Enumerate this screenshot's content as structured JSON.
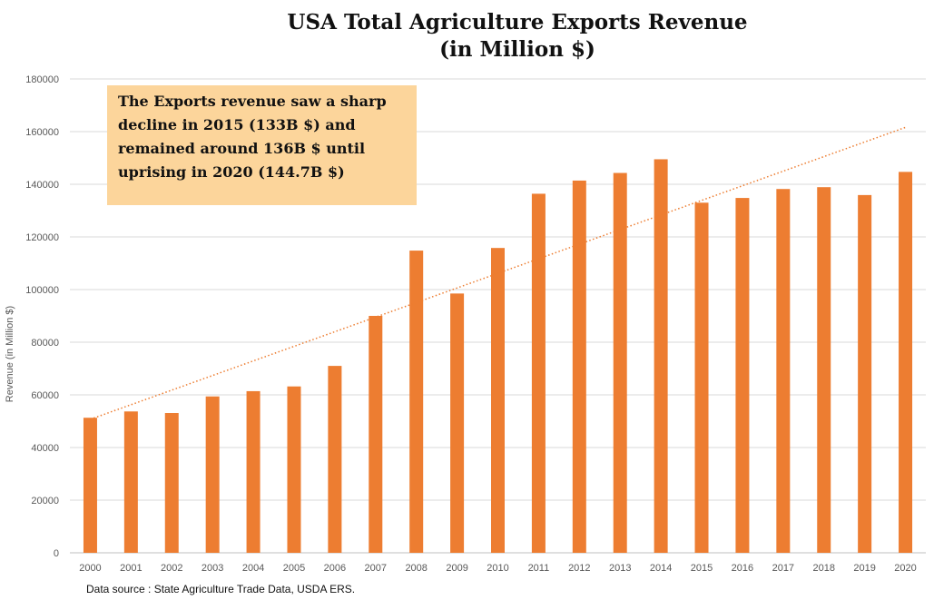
{
  "chart_data": {
    "type": "bar",
    "title_line1": "USA Total Agriculture Exports Revenue",
    "title_line2": "(in Million $)",
    "xlabel": "",
    "ylabel": "Revenue (in Million $)",
    "ylim": [
      0,
      180000
    ],
    "yticks": [
      0,
      20000,
      40000,
      60000,
      80000,
      100000,
      120000,
      140000,
      160000,
      180000
    ],
    "grid": true,
    "categories": [
      "2000",
      "2001",
      "2002",
      "2003",
      "2004",
      "2005",
      "2006",
      "2007",
      "2008",
      "2009",
      "2010",
      "2011",
      "2012",
      "2013",
      "2014",
      "2015",
      "2016",
      "2017",
      "2018",
      "2019",
      "2020"
    ],
    "values": [
      51300,
      53700,
      53100,
      59400,
      61400,
      63200,
      71000,
      90000,
      114800,
      98500,
      115800,
      136400,
      141400,
      144300,
      149500,
      133000,
      134800,
      138200,
      138900,
      135900,
      144700
    ],
    "trendline": {
      "type": "linear",
      "style": "dotted"
    },
    "bar_color": "#ed7d31",
    "annotation": {
      "lines": [
        "The Exports revenue saw a sharp",
        "decline in 2015 (133B $) and",
        "remained around 136B $ until",
        "uprising in 2020 (144.7B $)"
      ],
      "background": "#fcd59b"
    },
    "source": "Data source :  State Agriculture Trade Data, USDA ERS."
  }
}
